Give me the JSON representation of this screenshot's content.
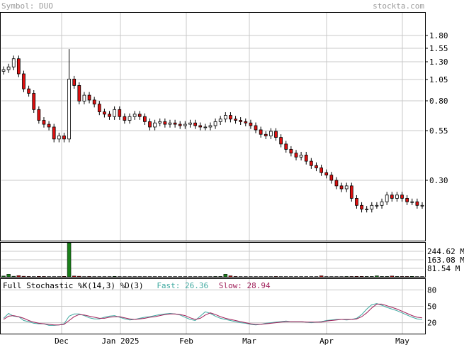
{
  "header": {
    "symbol": "Symbol: DUO",
    "site": "stockta.com"
  },
  "colors": {
    "up": "#ffffff",
    "down": "#e01010",
    "volume": "#1a7f1a",
    "volume_down": "#c01010",
    "grid": "#c8c8c8",
    "fast": "#3fa9a0",
    "slow": "#a0205a"
  },
  "stochastic": {
    "title": "Full Stochastic %K(14,3) %D(3)",
    "fast_label": "Fast: 26.36",
    "slow_label": "Slow: 28.94",
    "levels": [
      "80",
      "50",
      "20"
    ]
  },
  "chart_data": [
    {
      "type": "candlestick",
      "title": "",
      "scale": "log",
      "y_ticks": [
        "1.80",
        "1.55",
        "1.30",
        "1.05",
        "0.80",
        "0.55",
        "0.30"
      ],
      "x_ticks": [
        "Dec",
        "Jan 2025",
        "Feb",
        "Mar",
        "Apr",
        "May"
      ],
      "close_series": [
        1.18,
        1.22,
        1.35,
        1.12,
        0.93,
        0.88,
        0.72,
        0.63,
        0.6,
        0.58,
        0.5,
        0.52,
        0.5,
        1.05,
        0.97,
        0.8,
        0.86,
        0.81,
        0.77,
        0.7,
        0.68,
        0.66,
        0.72,
        0.66,
        0.63,
        0.66,
        0.68,
        0.66,
        0.62,
        0.58,
        0.61,
        0.62,
        0.6,
        0.61,
        0.6,
        0.59,
        0.6,
        0.61,
        0.59,
        0.58,
        0.58,
        0.59,
        0.62,
        0.64,
        0.67,
        0.64,
        0.63,
        0.62,
        0.61,
        0.59,
        0.56,
        0.53,
        0.52,
        0.55,
        0.51,
        0.47,
        0.44,
        0.42,
        0.4,
        0.41,
        0.38,
        0.36,
        0.35,
        0.33,
        0.32,
        0.3,
        0.28,
        0.27,
        0.28,
        0.24,
        0.22,
        0.21,
        0.21,
        0.22,
        0.22,
        0.23,
        0.25,
        0.24,
        0.25,
        0.24,
        0.23,
        0.23,
        0.22,
        0.22
      ]
    },
    {
      "type": "bar",
      "title": "",
      "ylabel": "",
      "y_ticks": [
        "244.62 M",
        "163.08 M",
        "81.54 M"
      ],
      "ylim_millions": [
        0,
        326
      ],
      "values_millions": [
        8,
        25,
        6,
        12,
        6,
        4,
        3,
        5,
        4,
        3,
        3,
        3,
        5,
        330,
        8,
        6,
        3,
        4,
        3,
        3,
        3,
        3,
        5,
        3,
        3,
        3,
        3,
        3,
        3,
        3,
        3,
        3,
        3,
        3,
        3,
        3,
        3,
        3,
        3,
        3,
        3,
        3,
        4,
        4,
        25,
        10,
        4,
        3,
        3,
        3,
        3,
        3,
        3,
        3,
        4,
        3,
        3,
        3,
        3,
        3,
        3,
        3,
        3,
        10,
        3,
        3,
        3,
        3,
        4,
        4,
        5,
        5,
        4,
        4,
        10,
        4,
        4,
        8,
        4,
        4,
        4,
        5,
        3,
        3
      ]
    },
    {
      "type": "line",
      "title": "",
      "ylim": [
        0,
        100
      ],
      "series": [
        {
          "name": "Fast",
          "values": [
            28,
            37,
            32,
            31,
            24,
            22,
            19,
            18,
            18,
            15,
            15,
            16,
            18,
            32,
            36,
            36,
            33,
            29,
            27,
            27,
            30,
            32,
            33,
            30,
            27,
            25,
            26,
            28,
            30,
            31,
            33,
            35,
            36,
            37,
            36,
            34,
            30,
            26,
            24,
            32,
            40,
            37,
            32,
            28,
            26,
            24,
            22,
            20,
            19,
            17,
            16,
            17,
            19,
            20,
            21,
            22,
            23,
            22,
            22,
            22,
            21,
            20,
            21,
            22,
            24,
            25,
            26,
            26,
            25,
            26,
            28,
            35,
            45,
            53,
            55,
            52,
            48,
            45,
            42,
            38,
            34,
            30,
            27,
            26
          ]
        },
        {
          "name": "Slow",
          "values": [
            26,
            32,
            33,
            31,
            28,
            24,
            21,
            19,
            18,
            17,
            16,
            16,
            17,
            24,
            31,
            35,
            34,
            32,
            30,
            28,
            28,
            30,
            31,
            31,
            29,
            27,
            26,
            27,
            28,
            30,
            31,
            33,
            35,
            36,
            36,
            35,
            33,
            29,
            26,
            28,
            34,
            38,
            35,
            31,
            28,
            26,
            24,
            22,
            20,
            18,
            17,
            17,
            18,
            19,
            20,
            21,
            22,
            22,
            22,
            22,
            21,
            21,
            21,
            21,
            23,
            24,
            25,
            26,
            26,
            26,
            27,
            31,
            38,
            47,
            54,
            54,
            51,
            48,
            45,
            41,
            37,
            33,
            30,
            29
          ]
        }
      ]
    }
  ]
}
